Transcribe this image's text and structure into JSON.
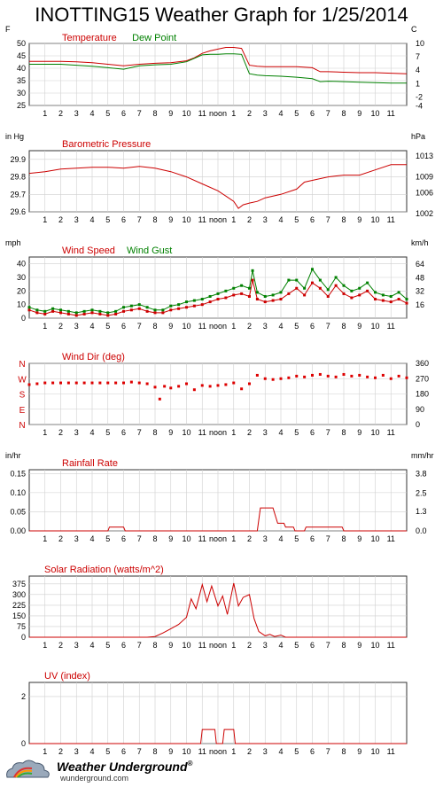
{
  "title": "INOTTING15 Weather Graph for 1/25/2014",
  "time_ticks": [
    "1",
    "2",
    "3",
    "4",
    "5",
    "6",
    "7",
    "8",
    "9",
    "10",
    "11",
    "noon",
    "1",
    "2",
    "3",
    "4",
    "5",
    "6",
    "7",
    "8",
    "9",
    "10",
    "11"
  ],
  "footer": {
    "brand": "Weather Underground",
    "trademark": "®",
    "site": "wunderground.com"
  },
  "chart_data": [
    {
      "id": "temperature",
      "type": "line",
      "unit_left": "F",
      "unit_right": "C",
      "legend": [
        {
          "text": "Temperature",
          "color": "#cc0000"
        },
        {
          "text": "Dew Point",
          "color": "#008000"
        }
      ],
      "ylim": [
        25,
        50
      ],
      "y_ticks": [
        "25",
        "30",
        "35",
        "40",
        "45",
        "50"
      ],
      "y2_ticks": [
        {
          "v": 50,
          "t": "10"
        },
        {
          "v": 44.6,
          "t": "7"
        },
        {
          "v": 39.2,
          "t": "4"
        },
        {
          "v": 33.8,
          "t": "1"
        },
        {
          "v": 28.4,
          "t": "-2"
        },
        {
          "v": 24.8,
          "t": "-4"
        }
      ],
      "x": [
        0,
        1,
        2,
        3,
        4,
        5,
        6,
        7,
        8,
        9,
        10,
        10.5,
        11,
        11.5,
        12,
        12.5,
        13,
        13.5,
        14,
        14.5,
        15,
        16,
        17,
        18,
        18.5,
        19,
        20,
        21,
        22,
        23,
        24
      ],
      "series": [
        {
          "name": "Temperature",
          "color": "#cc0000",
          "values": [
            42.8,
            42.8,
            42.8,
            42.6,
            42.2,
            41.6,
            41.0,
            41.6,
            42.0,
            42.2,
            43.0,
            44.2,
            46.0,
            47.0,
            47.7,
            48.4,
            48.4,
            48.0,
            41.2,
            40.8,
            40.6,
            40.6,
            40.6,
            40.2,
            38.6,
            38.6,
            38.4,
            38.2,
            38.2,
            38.0,
            37.8
          ]
        },
        {
          "name": "Dew Point",
          "color": "#008000",
          "values": [
            41.6,
            41.6,
            41.6,
            41.2,
            40.8,
            40.2,
            39.6,
            41.0,
            41.4,
            41.6,
            42.6,
            44.0,
            45.4,
            45.6,
            45.6,
            45.8,
            45.8,
            45.6,
            37.8,
            37.2,
            37.0,
            36.8,
            36.4,
            35.8,
            34.6,
            34.8,
            34.6,
            34.4,
            34.2,
            34.0,
            34.0
          ]
        }
      ]
    },
    {
      "id": "pressure",
      "type": "line",
      "unit_left": "in Hg",
      "unit_right": "hPa",
      "legend": [
        {
          "text": "Barometric Pressure",
          "color": "#cc0000"
        }
      ],
      "ylim": [
        29.6,
        29.95
      ],
      "y_ticks": [
        "29.6",
        "29.7",
        "29.8",
        "29.9"
      ],
      "y2_ticks": [
        {
          "v": 29.92,
          "t": "1013"
        },
        {
          "v": 29.8,
          "t": "1009"
        },
        {
          "v": 29.71,
          "t": "1006"
        },
        {
          "v": 29.59,
          "t": "1002"
        }
      ],
      "x": [
        0,
        1,
        2,
        3,
        4,
        5,
        6,
        7,
        8,
        9,
        10,
        11,
        12,
        13,
        13.3,
        13.6,
        14,
        14.5,
        15,
        16,
        17,
        17.5,
        18,
        19,
        20,
        21,
        22,
        23,
        24
      ],
      "series": [
        {
          "name": "Barometric Pressure",
          "color": "#cc0000",
          "values": [
            29.82,
            29.83,
            29.845,
            29.85,
            29.855,
            29.855,
            29.85,
            29.86,
            29.85,
            29.83,
            29.8,
            29.76,
            29.72,
            29.66,
            29.62,
            29.64,
            29.65,
            29.66,
            29.68,
            29.7,
            29.73,
            29.77,
            29.78,
            29.8,
            29.81,
            29.81,
            29.84,
            29.87,
            29.87
          ]
        }
      ]
    },
    {
      "id": "wind_speed",
      "type": "line",
      "unit_left": "mph",
      "unit_right": "km/h",
      "legend": [
        {
          "text": "Wind Speed",
          "color": "#cc0000"
        },
        {
          "text": "Wind Gust",
          "color": "#008000"
        }
      ],
      "ylim": [
        0,
        45
      ],
      "y_ticks": [
        "0",
        "10",
        "20",
        "30",
        "40"
      ],
      "y2_ticks": [
        {
          "v": 39.8,
          "t": "64"
        },
        {
          "v": 29.8,
          "t": "48"
        },
        {
          "v": 19.9,
          "t": "32"
        },
        {
          "v": 9.9,
          "t": "16"
        }
      ],
      "x": [
        0,
        0.5,
        1,
        1.5,
        2,
        2.5,
        3,
        3.5,
        4,
        4.5,
        5,
        5.5,
        6,
        6.5,
        7,
        7.5,
        8,
        8.5,
        9,
        9.5,
        10,
        10.5,
        11,
        11.5,
        12,
        12.5,
        13,
        13.5,
        14,
        14.2,
        14.5,
        15,
        15.5,
        16,
        16.5,
        17,
        17.5,
        18,
        18.5,
        19,
        19.5,
        20,
        20.5,
        21,
        21.5,
        22,
        22.5,
        23,
        23.5,
        24
      ],
      "series": [
        {
          "name": "Wind Speed",
          "color": "#cc0000",
          "values": [
            6,
            4,
            3,
            5,
            4,
            3,
            2,
            3,
            4,
            3,
            2,
            3,
            5,
            6,
            7,
            5,
            4,
            4,
            6,
            7,
            8,
            9,
            10,
            12,
            14,
            15,
            17,
            18,
            16,
            28,
            14,
            12,
            13,
            14,
            18,
            22,
            17,
            26,
            22,
            16,
            24,
            18,
            15,
            17,
            20,
            14,
            13,
            12,
            14,
            11
          ]
        },
        {
          "name": "Wind Gust",
          "color": "#008000",
          "values": [
            8,
            6,
            5,
            7,
            6,
            5,
            4,
            5,
            6,
            5,
            4,
            5,
            8,
            9,
            10,
            8,
            6,
            6,
            9,
            10,
            12,
            13,
            14,
            16,
            18,
            20,
            22,
            24,
            22,
            35,
            19,
            16,
            17,
            19,
            28,
            28,
            22,
            36,
            28,
            21,
            30,
            24,
            20,
            22,
            26,
            19,
            17,
            16,
            19,
            14
          ]
        }
      ]
    },
    {
      "id": "wind_dir",
      "type": "scatter",
      "unit_left": "",
      "unit_right": "",
      "legend": [
        {
          "text": "Wind Dir (deg)",
          "color": "#cc0000"
        }
      ],
      "ylim": [
        0,
        360
      ],
      "y_tick_letters": [
        {
          "v": 360,
          "t": "N"
        },
        {
          "v": 270,
          "t": "W"
        },
        {
          "v": 180,
          "t": "S"
        },
        {
          "v": 90,
          "t": "E"
        },
        {
          "v": 0,
          "t": "N"
        }
      ],
      "y2_ticks": [
        {
          "v": 360,
          "t": "360"
        },
        {
          "v": 270,
          "t": "270"
        },
        {
          "v": 180,
          "t": "180"
        },
        {
          "v": 90,
          "t": "90"
        },
        {
          "v": 0,
          "t": "0"
        }
      ],
      "x": [
        0,
        0.5,
        1,
        1.5,
        2,
        2.5,
        3,
        3.5,
        4,
        4.5,
        5,
        5.5,
        6,
        6.5,
        7,
        7.5,
        8,
        8.3,
        8.6,
        9,
        9.5,
        10,
        10.5,
        11,
        11.5,
        12,
        12.5,
        13,
        13.5,
        14,
        14.5,
        15,
        15.5,
        16,
        16.5,
        17,
        17.5,
        18,
        18.5,
        19,
        19.5,
        20,
        20.5,
        21,
        21.5,
        22,
        22.5,
        23,
        23.5,
        24
      ],
      "values": [
        235,
        240,
        245,
        245,
        245,
        245,
        245,
        245,
        245,
        245,
        245,
        245,
        245,
        250,
        245,
        240,
        220,
        150,
        225,
        215,
        225,
        240,
        205,
        230,
        225,
        230,
        235,
        245,
        210,
        240,
        290,
        270,
        265,
        270,
        275,
        285,
        280,
        290,
        295,
        285,
        280,
        295,
        285,
        290,
        280,
        275,
        290,
        270,
        285,
        275
      ]
    },
    {
      "id": "rainfall",
      "type": "line",
      "unit_left": "in/hr",
      "unit_right": "mm/hr",
      "legend": [
        {
          "text": "Rainfall Rate",
          "color": "#cc0000"
        }
      ],
      "ylim": [
        0,
        0.16
      ],
      "y_ticks": [
        "0.00",
        "0.05",
        "0.10",
        "0.15"
      ],
      "y2_ticks": [
        {
          "v": 0.15,
          "t": "3.8"
        },
        {
          "v": 0.098,
          "t": "2.5"
        },
        {
          "v": 0.051,
          "t": "1.3"
        },
        {
          "v": 0.0,
          "t": "0.0"
        }
      ],
      "x": [
        0,
        5.0,
        5.1,
        6.0,
        6.1,
        14.5,
        14.7,
        15.5,
        15.8,
        16.2,
        16.3,
        16.8,
        16.9,
        17.5,
        17.6,
        19.0,
        19.1,
        19.9,
        20.0,
        24
      ],
      "series": [
        {
          "name": "Rainfall Rate",
          "color": "#cc0000",
          "values": [
            0,
            0,
            0.01,
            0.01,
            0,
            0,
            0.06,
            0.06,
            0.02,
            0.02,
            0.01,
            0.01,
            0,
            0,
            0.01,
            0.01,
            0.01,
            0.01,
            0,
            0
          ]
        }
      ]
    },
    {
      "id": "solar",
      "type": "line",
      "unit_left": "",
      "unit_right": "",
      "legend": [
        {
          "text": "Solar Radiation (watts/m^2)",
          "color": "#cc0000"
        }
      ],
      "ylim": [
        0,
        430
      ],
      "y_ticks": [
        "0",
        "75",
        "150",
        "225",
        "300",
        "375"
      ],
      "x": [
        0,
        7.5,
        8,
        8.5,
        9,
        9.5,
        10,
        10.3,
        10.6,
        11,
        11.3,
        11.6,
        12,
        12.3,
        12.6,
        13,
        13.3,
        13.6,
        14,
        14.3,
        14.6,
        15,
        15.3,
        15.6,
        16,
        16.3,
        24
      ],
      "series": [
        {
          "name": "Solar Radiation",
          "color": "#cc0000",
          "values": [
            0,
            0,
            5,
            30,
            60,
            90,
            140,
            270,
            200,
            370,
            250,
            360,
            220,
            290,
            160,
            380,
            220,
            280,
            300,
            130,
            40,
            10,
            20,
            5,
            15,
            0,
            0
          ]
        }
      ]
    },
    {
      "id": "uv",
      "type": "line",
      "unit_left": "",
      "unit_right": "",
      "legend": [
        {
          "text": "UV (index)",
          "color": "#cc0000"
        }
      ],
      "ylim": [
        0,
        2.6
      ],
      "y_ticks": [
        "0",
        "2"
      ],
      "x": [
        0,
        10.9,
        11.0,
        11.8,
        11.9,
        12.3,
        12.4,
        13.0,
        13.1,
        24
      ],
      "series": [
        {
          "name": "UV",
          "color": "#cc0000",
          "values": [
            0,
            0,
            0.6,
            0.6,
            0,
            0,
            0.6,
            0.6,
            0,
            0
          ]
        }
      ]
    }
  ]
}
